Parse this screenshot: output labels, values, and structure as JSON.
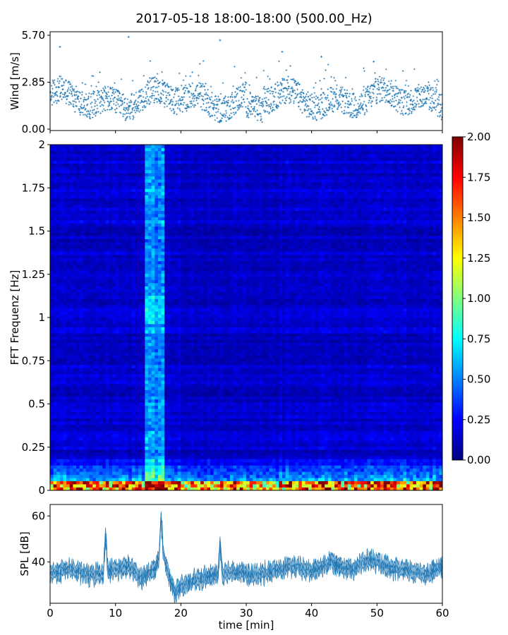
{
  "chart_data": [
    {
      "type": "scatter",
      "title": "2017-05-18 18:00-18:00 (500.00_Hz)",
      "ylabel": "Wind [m/s]",
      "xlabel": "",
      "xlim": [
        0,
        60
      ],
      "ylim": [
        0,
        5.7
      ],
      "yticks": [
        "0.00",
        "2.85",
        "5.70"
      ],
      "x_unit": "min",
      "baseline_mean": 1.8,
      "notable_points": [
        {
          "x": 1.5,
          "y": 5.0
        },
        {
          "x": 12.0,
          "y": 5.6
        },
        {
          "x": 26.0,
          "y": 5.4
        },
        {
          "x": 35.5,
          "y": 4.7
        },
        {
          "x": 41.5,
          "y": 4.4
        },
        {
          "x": 49.5,
          "y": 4.1
        }
      ],
      "color": "#1f77b4",
      "marker": "+"
    },
    {
      "type": "heatmap",
      "ylabel": "FFT Frequenz [Hz]",
      "xlim": [
        0,
        60
      ],
      "ylim": [
        0,
        2
      ],
      "yticks": [
        "0",
        "0.25",
        "0.5",
        "0.75",
        "1",
        "1.25",
        "1.5",
        "1.75",
        "2"
      ],
      "colormap": "jet",
      "colorbar": {
        "min": 0,
        "max": 2,
        "ticks": [
          "0.00",
          "0.25",
          "0.50",
          "0.75",
          "1.00",
          "1.25",
          "1.50",
          "1.75",
          "2.00"
        ]
      },
      "bright_band_minutes": [
        14.5,
        17.5
      ],
      "background_level": 0.15,
      "low_frequency_peak_level": 1.8
    },
    {
      "type": "line",
      "ylabel": "SPL [dB]",
      "xlabel": "time [min]",
      "xlim": [
        0,
        60
      ],
      "ylim": [
        22,
        65
      ],
      "yticks": [
        "40",
        "60"
      ],
      "xticks": [
        "0",
        "10",
        "20",
        "30",
        "40",
        "50",
        "60"
      ],
      "color": "#1f77b4",
      "trend": [
        {
          "x": 0,
          "y": 35
        },
        {
          "x": 3,
          "y": 37
        },
        {
          "x": 6,
          "y": 34
        },
        {
          "x": 9,
          "y": 36
        },
        {
          "x": 12,
          "y": 38
        },
        {
          "x": 14,
          "y": 33
        },
        {
          "x": 16,
          "y": 37
        },
        {
          "x": 17,
          "y": 45
        },
        {
          "x": 19,
          "y": 27
        },
        {
          "x": 22,
          "y": 32
        },
        {
          "x": 25,
          "y": 34
        },
        {
          "x": 28,
          "y": 36
        },
        {
          "x": 31,
          "y": 34
        },
        {
          "x": 34,
          "y": 36
        },
        {
          "x": 37,
          "y": 38
        },
        {
          "x": 40,
          "y": 36
        },
        {
          "x": 43,
          "y": 40
        },
        {
          "x": 46,
          "y": 37
        },
        {
          "x": 49,
          "y": 41
        },
        {
          "x": 52,
          "y": 37
        },
        {
          "x": 55,
          "y": 36
        },
        {
          "x": 58,
          "y": 35
        },
        {
          "x": 60,
          "y": 38
        }
      ],
      "peaks": [
        {
          "x": 8.5,
          "y": 56
        },
        {
          "x": 17.0,
          "y": 62
        },
        {
          "x": 26.0,
          "y": 51
        }
      ]
    }
  ]
}
